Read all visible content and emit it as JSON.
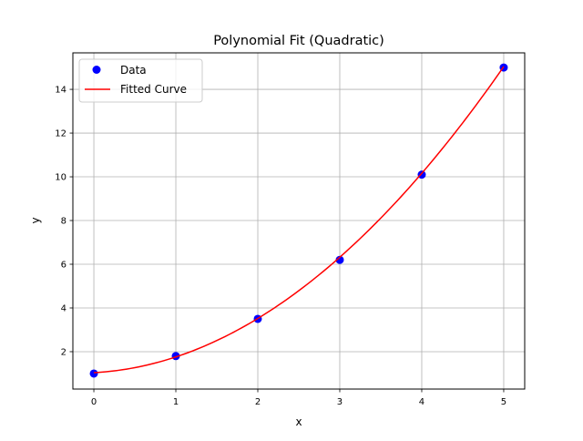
{
  "chart_data": {
    "type": "scatter+line",
    "title": "Polynomial Fit (Quadratic)",
    "xlabel": "x",
    "ylabel": "y",
    "xlim": [
      -0.256,
      5.256
    ],
    "ylim": [
      0.29,
      15.67
    ],
    "xticks": [
      0,
      1,
      2,
      3,
      4,
      5
    ],
    "yticks": [
      2,
      4,
      6,
      8,
      10,
      12,
      14
    ],
    "grid": true,
    "legend": {
      "placement": "top-left",
      "entries": [
        "Data",
        "Fitted Curve"
      ]
    },
    "series": [
      {
        "name": "Data",
        "kind": "scatter",
        "color": "#0000ff",
        "x": [
          0,
          1,
          2,
          3,
          4,
          5
        ],
        "y": [
          1.0,
          1.8,
          3.5,
          6.2,
          10.1,
          15.0
        ]
      },
      {
        "name": "Fitted Curve",
        "kind": "line",
        "color": "#ff0000"
      }
    ]
  }
}
